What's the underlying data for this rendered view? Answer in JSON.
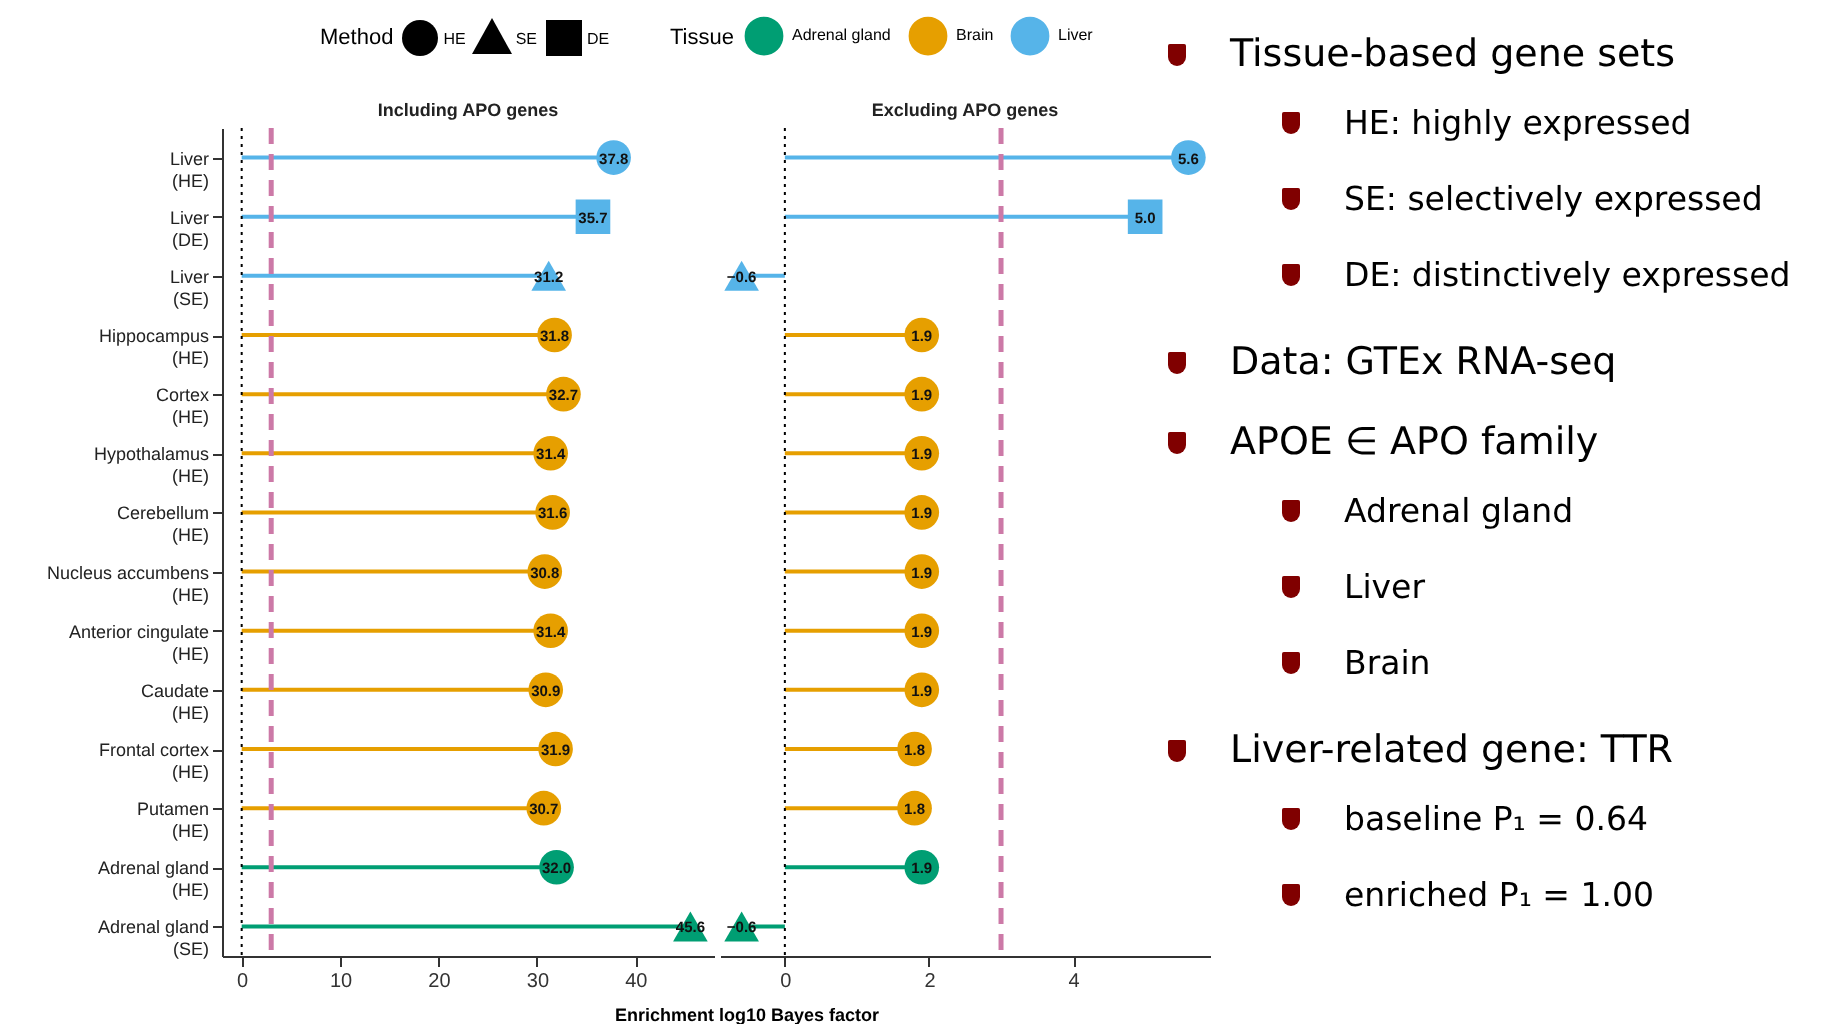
{
  "chart_data": [
    {
      "type": "lollipop",
      "title": "Including APO genes",
      "xlabel": "Enrichment log10 Bayes factor",
      "orientation": "horizontal",
      "legend": "top",
      "legend_title": "Tissue",
      "annotations": [
        "Method",
        "HE",
        "SE",
        "DE"
      ],
      "xlim": [
        -2,
        48
      ],
      "xticks": [
        0,
        10,
        20,
        30,
        40
      ],
      "categories": [
        "Liver\n(HE)",
        "Liver\n(DE)",
        "Liver\n(SE)",
        "Hippocampus\n(HE)",
        "Cortex\n(HE)",
        "Hypothalamus\n(HE)",
        "Cerebellum\n(HE)",
        "Nucleus accumbens\n(HE)",
        "Anterior cingulate\n(HE)",
        "Caudate\n(HE)",
        "Frontal cortex\n(HE)",
        "Putamen\n(HE)",
        "Adrenal gland\n(HE)",
        "Adrenal gland\n(SE)"
      ],
      "ref_lines": [
        {
          "axis": "x",
          "value": 0,
          "color": "#000000",
          "line_style": "dotted"
        },
        {
          "axis": "x",
          "value": 3,
          "color": "#cc79a7",
          "line_style": "dashed"
        }
      ],
      "series": [
        {
          "name": "Adrenal gland",
          "marker": "circle",
          "color": "#009e73",
          "values": [
            null,
            null,
            null,
            null,
            null,
            null,
            null,
            null,
            null,
            null,
            null,
            null,
            32.0,
            null
          ],
          "value_labels": [
            null,
            null,
            null,
            null,
            null,
            null,
            null,
            null,
            null,
            null,
            null,
            null,
            "32.0",
            null
          ]
        },
        {
          "marker": "triangle",
          "color": "#009e73",
          "values": [
            null,
            null,
            null,
            null,
            null,
            null,
            null,
            null,
            null,
            null,
            null,
            null,
            null,
            45.6
          ],
          "value_labels": [
            null,
            null,
            null,
            null,
            null,
            null,
            null,
            null,
            null,
            null,
            null,
            null,
            null,
            "45.6"
          ]
        },
        {
          "name": "Brain",
          "marker": "circle",
          "color": "#e69f00",
          "values": [
            null,
            null,
            null,
            31.8,
            32.7,
            31.4,
            31.6,
            30.8,
            31.4,
            30.9,
            31.9,
            30.7,
            null,
            null
          ],
          "value_labels": [
            null,
            null,
            null,
            "31.8",
            "32.7",
            "31.4",
            "31.6",
            "30.8",
            "31.4",
            "30.9",
            "31.9",
            "30.7",
            null,
            null
          ]
        },
        {
          "name": "Liver",
          "marker": "circle",
          "color": "#56b4e9",
          "values": [
            37.8,
            null,
            null,
            null,
            null,
            null,
            null,
            null,
            null,
            null,
            null,
            null,
            null,
            null
          ],
          "value_labels": [
            "37.8",
            null,
            null,
            null,
            null,
            null,
            null,
            null,
            null,
            null,
            null,
            null,
            null,
            null
          ]
        },
        {
          "marker": "triangle",
          "color": "#56b4e9",
          "values": [
            null,
            null,
            31.2,
            null,
            null,
            null,
            null,
            null,
            null,
            null,
            null,
            null,
            null,
            null
          ],
          "value_labels": [
            null,
            null,
            "31.2",
            null,
            null,
            null,
            null,
            null,
            null,
            null,
            null,
            null,
            null,
            null
          ]
        },
        {
          "marker": "square",
          "color": "#56b4e9",
          "values": [
            null,
            35.7,
            null,
            null,
            null,
            null,
            null,
            null,
            null,
            null,
            null,
            null,
            null,
            null
          ],
          "value_labels": [
            null,
            "35.7",
            null,
            null,
            null,
            null,
            null,
            null,
            null,
            null,
            null,
            null,
            null,
            null
          ]
        }
      ]
    },
    {
      "type": "lollipop",
      "title": "Excluding APO genes",
      "orientation": "horizontal",
      "tick_labels": "x",
      "xlim": [
        -0.9,
        5.9
      ],
      "xticks": [
        0,
        2,
        4
      ],
      "categories": [
        null,
        null,
        null,
        null,
        null,
        null,
        null,
        null,
        null,
        null,
        null,
        null,
        null,
        null
      ],
      "ref_lines": [
        {
          "axis": "x",
          "value": 0,
          "color": "#000000",
          "line_style": "dotted"
        },
        {
          "axis": "x",
          "value": 3,
          "color": "#cc79a7",
          "line_style": "dashed"
        }
      ],
      "series": [
        {
          "marker": "circle",
          "color": "#009e73",
          "values": [
            null,
            null,
            null,
            null,
            null,
            null,
            null,
            null,
            null,
            null,
            null,
            null,
            1.9,
            null
          ],
          "value_labels": [
            null,
            null,
            null,
            null,
            null,
            null,
            null,
            null,
            null,
            null,
            null,
            null,
            "1.9",
            null
          ]
        },
        {
          "marker": "triangle",
          "color": "#009e73",
          "values": [
            null,
            null,
            null,
            null,
            null,
            null,
            null,
            null,
            null,
            null,
            null,
            null,
            null,
            -0.6
          ],
          "value_labels": [
            null,
            null,
            null,
            null,
            null,
            null,
            null,
            null,
            null,
            null,
            null,
            null,
            null,
            "−0.6"
          ]
        },
        {
          "marker": "circle",
          "color": "#e69f00",
          "values": [
            null,
            null,
            null,
            1.9,
            1.9,
            1.9,
            1.9,
            1.9,
            1.9,
            1.9,
            1.8,
            1.8,
            null,
            null
          ],
          "value_labels": [
            null,
            null,
            null,
            "1.9",
            "1.9",
            "1.9",
            "1.9",
            "1.9",
            "1.9",
            "1.9",
            "1.8",
            "1.8",
            null,
            null
          ]
        },
        {
          "marker": "circle",
          "color": "#56b4e9",
          "values": [
            5.6,
            null,
            null,
            null,
            null,
            null,
            null,
            null,
            null,
            null,
            null,
            null,
            null,
            null
          ],
          "value_labels": [
            "5.6",
            null,
            null,
            null,
            null,
            null,
            null,
            null,
            null,
            null,
            null,
            null,
            null,
            null
          ]
        },
        {
          "marker": "triangle",
          "color": "#56b4e9",
          "values": [
            null,
            null,
            -0.6,
            null,
            null,
            null,
            null,
            null,
            null,
            null,
            null,
            null,
            null,
            null
          ],
          "value_labels": [
            null,
            null,
            "−0.6",
            null,
            null,
            null,
            null,
            null,
            null,
            null,
            null,
            null,
            null,
            null
          ]
        },
        {
          "marker": "square",
          "color": "#56b4e9",
          "values": [
            null,
            5.0,
            null,
            null,
            null,
            null,
            null,
            null,
            null,
            null,
            null,
            null,
            null,
            null
          ],
          "value_labels": [
            null,
            "5.0",
            null,
            null,
            null,
            null,
            null,
            null,
            null,
            null,
            null,
            null,
            null,
            null
          ]
        }
      ]
    },
    {
      "type": "other",
      "title": "Tissue-based gene sets",
      "annotations": [
        "HE: highly expressed",
        "SE: selectively expressed",
        "DE: distinctively expressed"
      ]
    },
    {
      "type": "other",
      "title": "Data: GTEx RNA-seq"
    },
    {
      "type": "other",
      "title": "APOE ∈ APO family",
      "annotations": [
        "Adrenal gland",
        "Liver",
        "Brain"
      ]
    },
    {
      "type": "other",
      "title": "Liver-related gene: TTR",
      "annotations": [
        "baseline P₁ = 0.64",
        "enriched P₁ = 1.00"
      ]
    }
  ]
}
